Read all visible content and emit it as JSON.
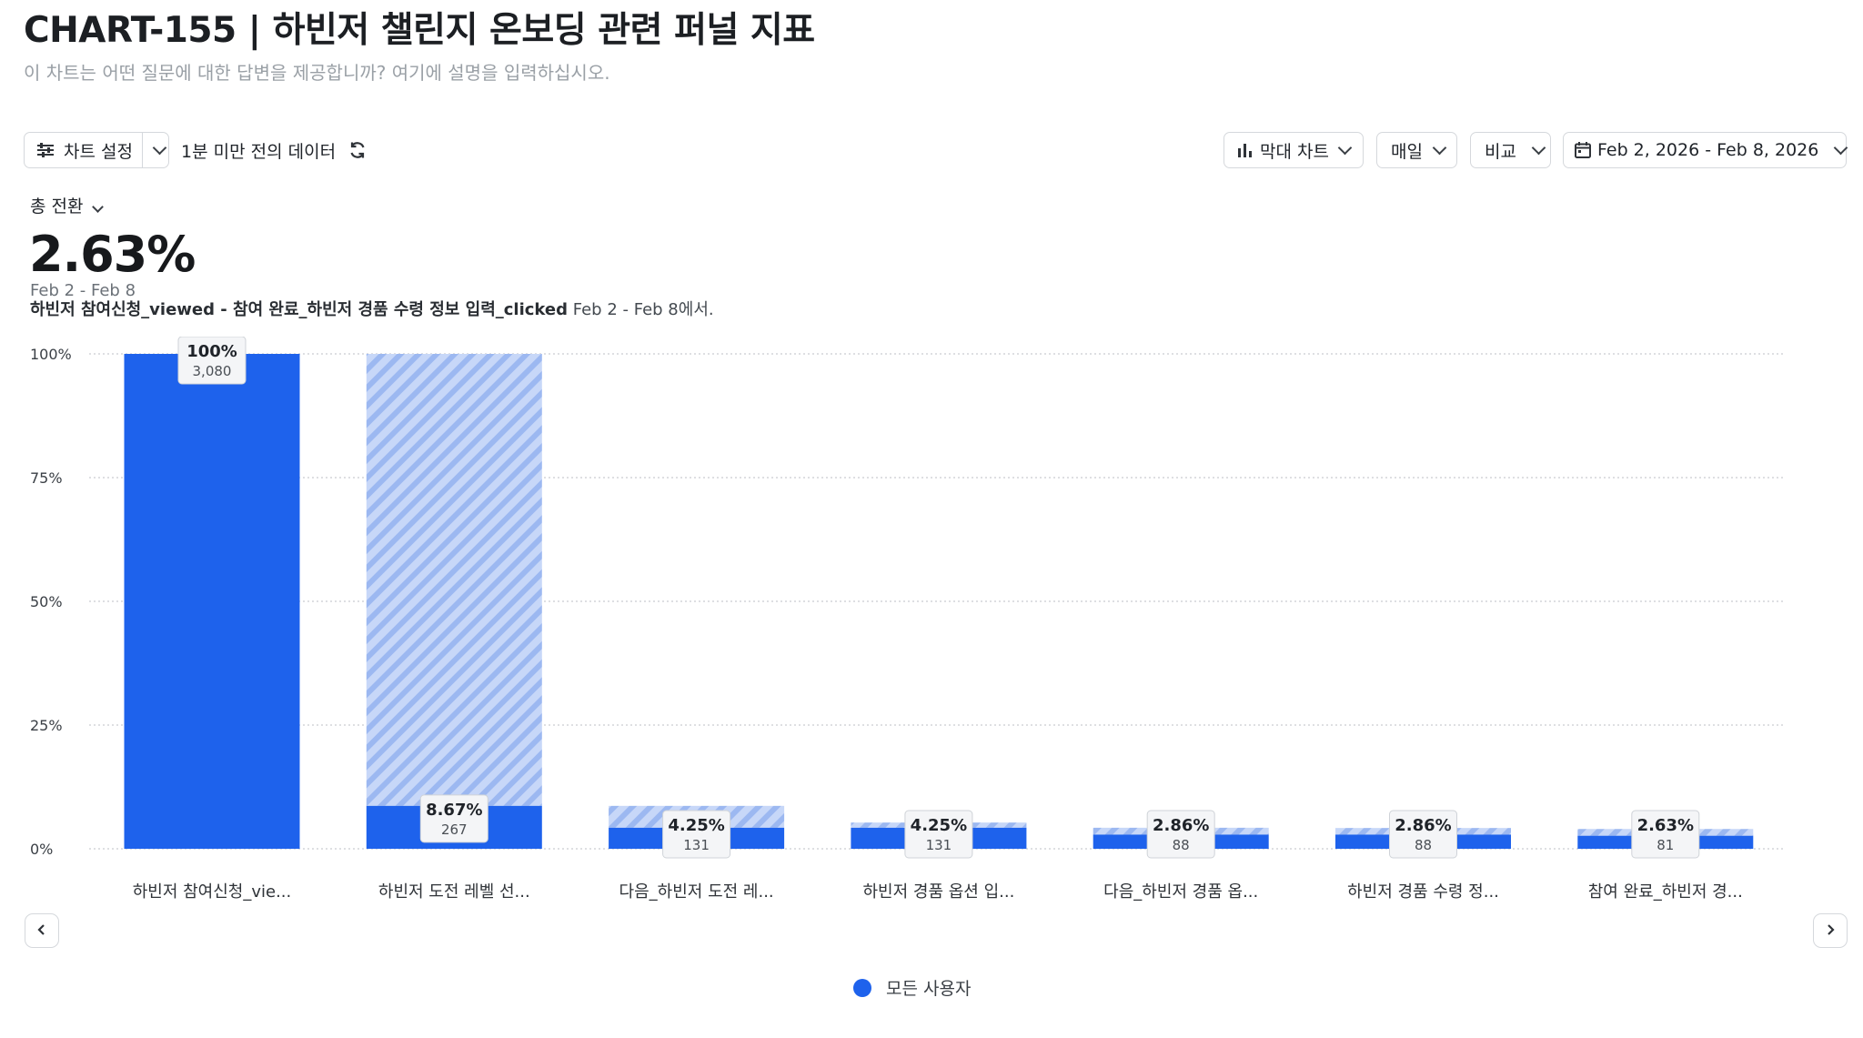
{
  "header": {
    "title": "CHART-155 | 하빈저 챌린지 온보딩 관련 퍼널 지표",
    "subtitle": "이 차트는 어떤 질문에 대한 답변을 제공합니까? 여기에 설명을 입력하십시오."
  },
  "toolbar": {
    "settings_label": "차트 설정",
    "freshness": "1분 미만 전의 데이터",
    "chart_type": "막대 차트",
    "interval": "매일",
    "compare": "비교",
    "date_range": "Feb 2, 2026 - Feb 8, 2026"
  },
  "metric": {
    "selector": "총 전환",
    "value": "2.63%",
    "range": "Feb 2 - Feb 8",
    "desc_bold": "하빈저 참여신청_viewed - 참여 완료_하빈저 경품 수령 정보 입력_clicked",
    "desc_rest": " Feb 2 - Feb 8에서."
  },
  "legend": {
    "label": "모든 사용자"
  },
  "colors": {
    "bar": "#1e62ec",
    "hatch": "#a9c2f3",
    "grid": "#c9ccd1"
  },
  "chart_data": {
    "type": "bar",
    "title": "",
    "xlabel": "",
    "ylabel": "",
    "ylim": [
      0,
      100
    ],
    "yticks": [
      "0%",
      "25%",
      "50%",
      "75%",
      "100%"
    ],
    "categories": [
      "하빈저 참여신청_vie...",
      "하빈저 도전 레벨 선...",
      "다음_하빈저 도전 레...",
      "하빈저 경품 옵션 입...",
      "다음_하빈저 경품 옵...",
      "하빈저 경품 수령 정...",
      "참여 완료_하빈저 경..."
    ],
    "series": [
      {
        "name": "모든 사용자",
        "values": [
          100,
          8.67,
          4.25,
          4.25,
          2.86,
          2.86,
          2.63
        ],
        "labels": [
          "100%",
          "8.67%",
          "4.25%",
          "4.25%",
          "2.86%",
          "2.86%",
          "2.63%"
        ],
        "counts": [
          "3,080",
          "267",
          "131",
          "131",
          "88",
          "88",
          "81"
        ]
      }
    ],
    "dropoff_top": [
      100,
      100,
      8.67,
      5.3,
      4.25,
      4.2,
      4.0
    ],
    "grid": true,
    "legend": "bottom-center"
  }
}
